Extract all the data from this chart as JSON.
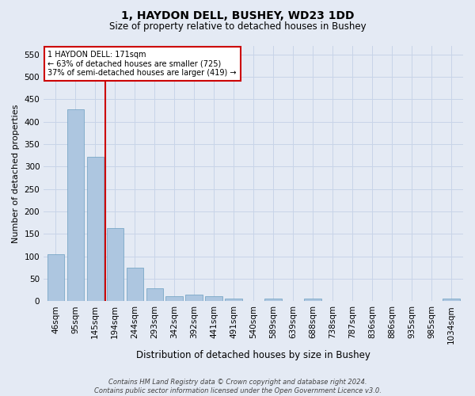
{
  "title1": "1, HAYDON DELL, BUSHEY, WD23 1DD",
  "title2": "Size of property relative to detached houses in Bushey",
  "xlabel": "Distribution of detached houses by size in Bushey",
  "ylabel": "Number of detached properties",
  "categories": [
    "46sqm",
    "95sqm",
    "145sqm",
    "194sqm",
    "244sqm",
    "293sqm",
    "342sqm",
    "392sqm",
    "441sqm",
    "491sqm",
    "540sqm",
    "589sqm",
    "639sqm",
    "688sqm",
    "738sqm",
    "787sqm",
    "836sqm",
    "886sqm",
    "935sqm",
    "985sqm",
    "1034sqm"
  ],
  "values": [
    105,
    427,
    322,
    163,
    75,
    28,
    11,
    14,
    11,
    6,
    0,
    5,
    0,
    5,
    0,
    0,
    0,
    0,
    0,
    0,
    5
  ],
  "bar_color": "#adc6e0",
  "bar_edge_color": "#6a9ec0",
  "vline_x": 2.5,
  "vline_color": "#cc0000",
  "annotation_text": "1 HAYDON DELL: 171sqm\n← 63% of detached houses are smaller (725)\n37% of semi-detached houses are larger (419) →",
  "annotation_box_facecolor": "#ffffff",
  "annotation_box_edgecolor": "#cc0000",
  "ylim": [
    0,
    570
  ],
  "yticks": [
    0,
    50,
    100,
    150,
    200,
    250,
    300,
    350,
    400,
    450,
    500,
    550
  ],
  "grid_color": "#c8d4e8",
  "bg_color": "#e4eaf4",
  "footer": "Contains HM Land Registry data © Crown copyright and database right 2024.\nContains public sector information licensed under the Open Government Licence v3.0.",
  "title1_fontsize": 10,
  "title2_fontsize": 8.5,
  "xlabel_fontsize": 8.5,
  "ylabel_fontsize": 8,
  "tick_fontsize": 7.5,
  "annotation_fontsize": 7,
  "footer_fontsize": 6
}
